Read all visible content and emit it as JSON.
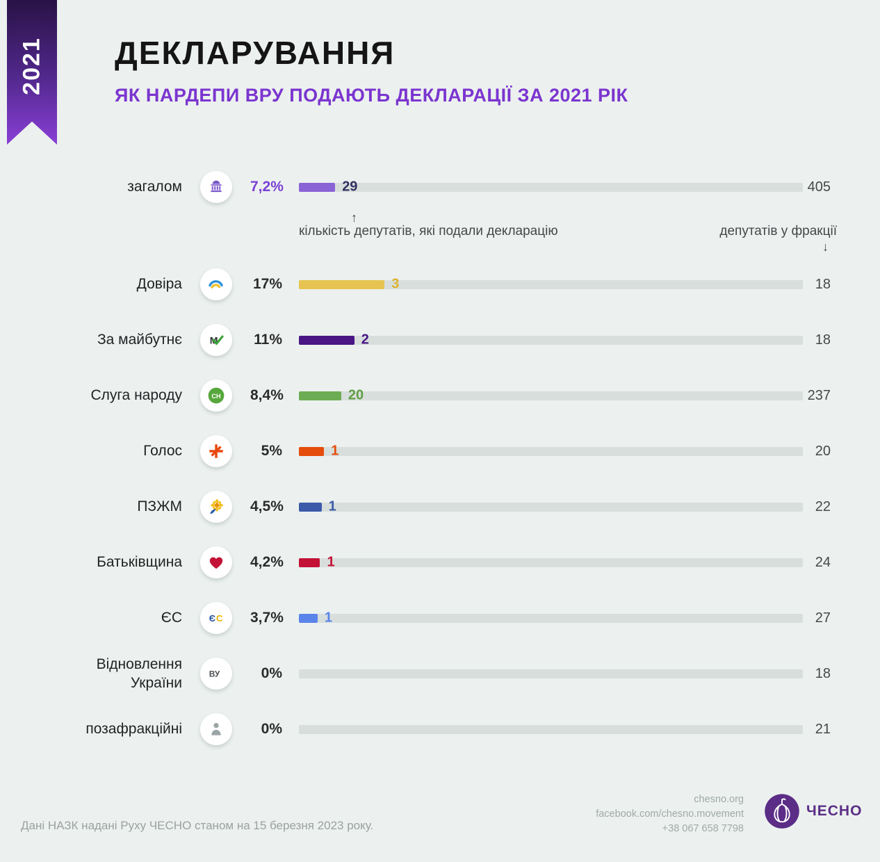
{
  "ribbon": {
    "year": "2021"
  },
  "header": {
    "title": "ДЕКЛАРУВАННЯ",
    "subtitle": "ЯК НАРДЕПИ ВРУ ПОДАЮТЬ ДЕКЛАРАЦІЇ ЗА 2021 РІК"
  },
  "annotations": {
    "left_arrow": "↑",
    "left_text": "кількість депутатів, які подали декларацію",
    "right_text": "депутатів у фракції",
    "right_arrow": "↓"
  },
  "chart_data": {
    "type": "bar",
    "title": "ЯК НАРДЕПИ ВРУ ПОДАЮТЬ ДЕКЛАРАЦІЇ ЗА 2021 РІК",
    "x_axis": {
      "min": 0,
      "max": 100,
      "unit": "%",
      "note": "bar length = share of deputies who submitted declarations"
    },
    "rows": [
      {
        "label": "загалом",
        "icon": "parliament-icon",
        "percent": 7.2,
        "percent_label": "7,2%",
        "submitted": 29,
        "total": 405,
        "bar_color": "#8a63d6",
        "value_color": "#343061",
        "percent_color": "#7b3fd4"
      },
      {
        "label": "Довіра",
        "icon": "rainbow-arc-icon",
        "percent": 17,
        "percent_label": "17%",
        "submitted": 3,
        "total": 18,
        "bar_color": "#e7c451",
        "value_color": "#ddb430"
      },
      {
        "label": "За майбутнє",
        "icon": "check-m-icon",
        "percent": 11,
        "percent_label": "11%",
        "submitted": 2,
        "total": 18,
        "bar_color": "#4a1685",
        "value_color": "#4a1685"
      },
      {
        "label": "Слуга народу",
        "icon": "sn-badge-icon",
        "percent": 8.4,
        "percent_label": "8,4%",
        "submitted": 20,
        "total": 237,
        "bar_color": "#6cad53",
        "value_color": "#619e46"
      },
      {
        "label": "Голос",
        "icon": "holos-flower-icon",
        "percent": 5,
        "percent_label": "5%",
        "submitted": 1,
        "total": 20,
        "bar_color": "#e54d0d",
        "value_color": "#e54d0d"
      },
      {
        "label": "ПЗЖМ",
        "icon": "sunflower-icon",
        "percent": 4.5,
        "percent_label": "4,5%",
        "submitted": 1,
        "total": 22,
        "bar_color": "#3b5aa9",
        "value_color": "#3b5aa9"
      },
      {
        "label": "Батьківщина",
        "icon": "heart-icon",
        "percent": 4.2,
        "percent_label": "4,2%",
        "submitted": 1,
        "total": 24,
        "bar_color": "#c31236",
        "value_color": "#c31236"
      },
      {
        "label": "ЄС",
        "icon": "eu-solidarity-icon",
        "percent": 3.7,
        "percent_label": "3,7%",
        "submitted": 1,
        "total": 27,
        "bar_color": "#5b84ea",
        "value_color": "#5b84ea"
      },
      {
        "label": "Відновлення\nУкраїни",
        "icon": "vu-monogram-icon",
        "percent": 0,
        "percent_label": "0%",
        "submitted": null,
        "total": 18,
        "bar_color": null,
        "value_color": null
      },
      {
        "label": "позафракційні",
        "icon": "person-icon",
        "percent": 0,
        "percent_label": "0%",
        "submitted": null,
        "total": 21,
        "bar_color": null,
        "value_color": null
      }
    ]
  },
  "footer": {
    "source_note": "Дані НАЗК надані Руху ЧЕСНО станом на 15 березня 2023 року.",
    "website": "chesno.org",
    "facebook": "facebook.com/chesno.movement",
    "phone": "+38 067 658 7798",
    "logo_text": "ЧЕСНО"
  },
  "colors": {
    "background": "#ecf1ef",
    "track": "#d8dedc",
    "accent_purple": "#7b35cf",
    "logo_purple": "#5b2d86"
  }
}
